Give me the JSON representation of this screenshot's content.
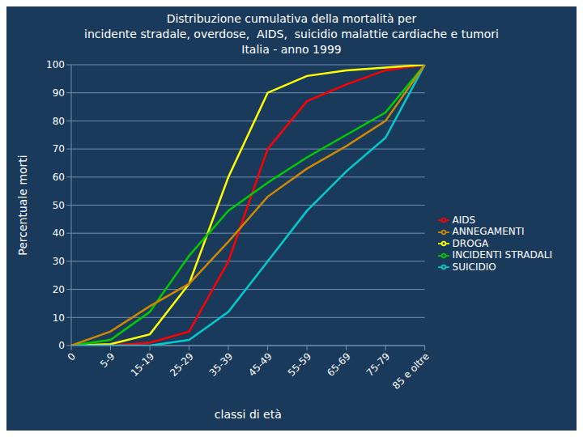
{
  "chart_data": {
    "type": "line",
    "title": "Distribuzione cumulativa della mortalità per\nincidente stradale, overdose,  AIDS,  suicidio malattie cardiache e tumori\nItalia - anno 1999",
    "xlabel": "classi di età",
    "ylabel": "Percentuale morti",
    "categories": [
      "0",
      "5-9",
      "15-19",
      "25-29",
      "35-39",
      "45-49",
      "55-59",
      "65-69",
      "75-79",
      "85 e oltre"
    ],
    "series": [
      {
        "name": "AIDS",
        "color": "#ff0000",
        "values": [
          0,
          0,
          1,
          5,
          30,
          70,
          87,
          93,
          98,
          100
        ]
      },
      {
        "name": "DROGA",
        "color": "#ffff00",
        "values": [
          0,
          0.5,
          4,
          22,
          60,
          90,
          96,
          98,
          99,
          100
        ]
      },
      {
        "name": "INCIDENTI STRADALI",
        "color": "#00cc00",
        "values": [
          0,
          2,
          12,
          32,
          48,
          58,
          67,
          75,
          83,
          100
        ]
      },
      {
        "name": "SUICIDIO",
        "color": "#00cccc",
        "values": [
          0,
          0,
          0,
          2,
          12,
          30,
          48,
          62,
          74,
          100
        ]
      },
      {
        "name": "ANNEGAMENTI",
        "color": "#cc8800",
        "values": [
          0,
          5,
          14,
          22,
          37,
          53,
          63,
          71,
          80,
          100
        ]
      }
    ],
    "ylim": [
      0,
      100
    ],
    "yticks": [
      0,
      10,
      20,
      30,
      40,
      50,
      60,
      70,
      80,
      90,
      100
    ],
    "grid": true,
    "legend": "right"
  }
}
